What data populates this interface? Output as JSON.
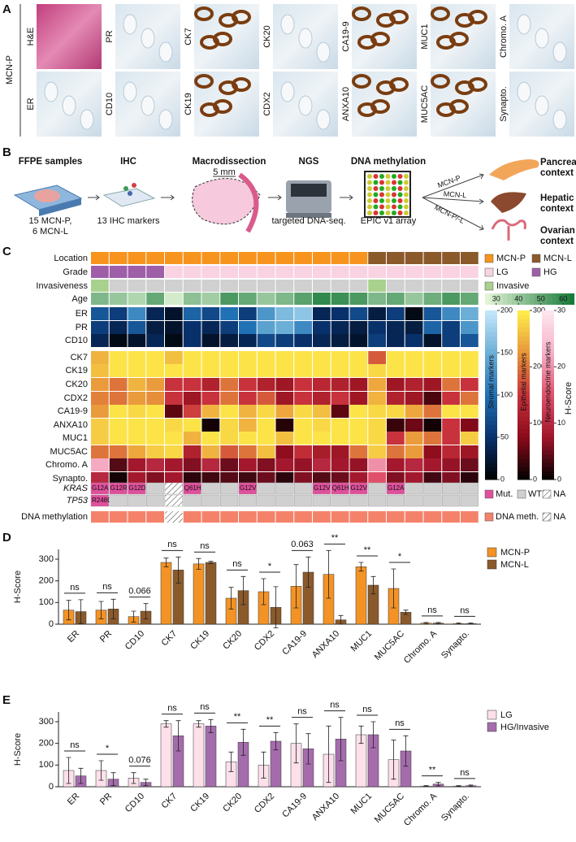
{
  "panel_a": {
    "label": "A",
    "group": "MCN-P",
    "row1": [
      "H&E",
      "PR",
      "CK7",
      "CK20",
      "CA19-9",
      "MUC1",
      "Chromo. A"
    ],
    "row2": [
      "ER",
      "CD10",
      "CK19",
      "CDX2",
      "ANXA10",
      "MUC5AC",
      "Synapto."
    ]
  },
  "panel_b": {
    "label": "B",
    "steps": [
      {
        "title": "FFPE samples",
        "text": [
          "15 MCN-P,",
          "6 MCN-L"
        ]
      },
      {
        "title": "IHC",
        "text": [
          "13 IHC markers"
        ]
      },
      {
        "title": "Macrodissection",
        "text": [
          "5 mm"
        ]
      },
      {
        "title": "NGS",
        "text": [
          "targeted DNA-seq."
        ]
      },
      {
        "title": "DNA methylation",
        "text": [
          "EPIC v1 array"
        ]
      }
    ],
    "arrows": [
      "MCN-P",
      "MCN-L",
      "MCN-P/-L"
    ],
    "contexts": [
      [
        "Pancreatic",
        "context"
      ],
      [
        "Hepatic",
        "context"
      ],
      [
        "Ovarian",
        "context"
      ]
    ]
  },
  "panel_c": {
    "label": "C",
    "legend": [
      {
        "label": "MCN-P",
        "color": "#f7941d"
      },
      {
        "label": "MCN-L",
        "color": "#8b5a2b"
      },
      {
        "label": "LG",
        "color": "#f9d3e2"
      },
      {
        "label": "HG",
        "color": "#9e5fa8"
      },
      {
        "label": "Invasive",
        "color": "#a9d18e"
      }
    ],
    "none_color": "#d0d0d0",
    "annotations": [
      {
        "name": "Location",
        "values": [
          "MCN-P",
          "MCN-P",
          "MCN-P",
          "MCN-P",
          "MCN-P",
          "MCN-P",
          "MCN-P",
          "MCN-P",
          "MCN-P",
          "MCN-P",
          "MCN-P",
          "MCN-P",
          "MCN-P",
          "MCN-P",
          "MCN-P",
          "MCN-L",
          "MCN-L",
          "MCN-L",
          "MCN-L",
          "MCN-L",
          "MCN-L"
        ]
      },
      {
        "name": "Grade",
        "values": [
          "HG",
          "HG",
          "HG",
          "HG",
          "LG",
          "LG",
          "LG",
          "LG",
          "LG",
          "LG",
          "LG",
          "LG",
          "LG",
          "LG",
          "LG",
          "LG",
          "LG",
          "LG",
          "LG",
          "LG",
          "LG"
        ]
      },
      {
        "name": "Invasiveness",
        "values": [
          "Invasive",
          null,
          null,
          null,
          null,
          null,
          null,
          null,
          null,
          null,
          null,
          null,
          null,
          null,
          null,
          "Invasive",
          null,
          null,
          null,
          null,
          null
        ]
      }
    ],
    "age": {
      "name": "Age",
      "values": [
        45,
        40,
        35,
        50,
        28,
        42,
        38,
        55,
        50,
        40,
        45,
        52,
        60,
        58,
        55,
        45,
        50,
        40,
        48,
        55,
        50
      ],
      "lim": [
        25,
        65
      ],
      "ticks": [
        30,
        40,
        50,
        60
      ],
      "colors": [
        "#e3f4d7",
        "#187a3a"
      ]
    },
    "scale_title": "H-Score",
    "scales": [
      {
        "name": "Stromal markers",
        "lim": [
          0,
          200
        ],
        "ticks": [
          0,
          50,
          100,
          150,
          200
        ],
        "colors": [
          "#000000",
          "#08306b",
          "#2171b5",
          "#6baed6",
          "#c6e8fa"
        ],
        "rows": [
          {
            "name": "ER",
            "values": [
              80,
              60,
              120,
              40,
              20,
              90,
              70,
              100,
              60,
              130,
              160,
              170,
              40,
              50,
              70,
              30,
              60,
              10,
              80,
              120,
              150
            ]
          },
          {
            "name": "PR",
            "values": [
              60,
              40,
              80,
              30,
              20,
              50,
              40,
              60,
              100,
              140,
              150,
              120,
              50,
              40,
              30,
              50,
              40,
              30,
              90,
              60,
              130
            ]
          },
          {
            "name": "CD10",
            "values": [
              40,
              10,
              20,
              40,
              10,
              50,
              20,
              30,
              40,
              70,
              60,
              50,
              40,
              30,
              20,
              60,
              40,
              50,
              20,
              60,
              80
            ]
          }
        ]
      },
      {
        "name": "Epithelial markers",
        "lim": [
          0,
          300
        ],
        "ticks": [
          0,
          100,
          200,
          300
        ],
        "colors": [
          "#000000",
          "#8b0a1a",
          "#c8323c",
          "#e8953a",
          "#fff04a"
        ],
        "rows": [
          {
            "name": "CK7",
            "values": [
              250,
              290,
              290,
              290,
              260,
              290,
              290,
              290,
              290,
              290,
              290,
              290,
              290,
              290,
              290,
              180,
              290,
              290,
              290,
              290,
              290
            ]
          },
          {
            "name": "CK19",
            "values": [
              260,
              290,
              290,
              290,
              290,
              290,
              290,
              290,
              290,
              290,
              290,
              290,
              290,
              290,
              290,
              280,
              290,
              290,
              290,
              290,
              290
            ]
          },
          {
            "name": "CK20",
            "values": [
              230,
              200,
              250,
              230,
              150,
              150,
              120,
              200,
              150,
              120,
              100,
              150,
              130,
              120,
              100,
              240,
              100,
              120,
              100,
              200,
              150
            ]
          },
          {
            "name": "CDX2",
            "values": [
              210,
              200,
              230,
              220,
              150,
              100,
              150,
              200,
              150,
              180,
              100,
              150,
              120,
              150,
              100,
              250,
              120,
              100,
              40,
              150,
              200
            ]
          },
          {
            "name": "CA19-9",
            "values": [
              230,
              290,
              280,
              290,
              50,
              160,
              250,
              290,
              250,
              280,
              240,
              280,
              260,
              50,
              290,
              280,
              280,
              240,
              200,
              290,
              290
            ]
          },
          {
            "name": "ANXA10",
            "values": [
              270,
              290,
              290,
              290,
              280,
              290,
              10,
              280,
              250,
              290,
              20,
              290,
              280,
              290,
              290,
              280,
              30,
              60,
              10,
              150,
              70
            ]
          },
          {
            "name": "MUC1",
            "values": [
              270,
              290,
              290,
              290,
              290,
              250,
              290,
              280,
              290,
              290,
              260,
              290,
              290,
              290,
              290,
              280,
              150,
              230,
              200,
              150,
              270
            ]
          },
          {
            "name": "MUC5AC",
            "values": [
              200,
              200,
              240,
              270,
              280,
              120,
              250,
              180,
              200,
              260,
              80,
              140,
              110,
              100,
              200,
              270,
              200,
              230,
              80,
              130,
              100
            ]
          }
        ]
      },
      {
        "name": "Neuroendocrine markers",
        "lim": [
          0,
          30
        ],
        "ticks": [
          0,
          10,
          20,
          30
        ],
        "colors": [
          "#000000",
          "#a0142a",
          "#e0506a",
          "#f6b0c8",
          "#fde8ef"
        ],
        "rows": [
          {
            "name": "Chromo. A",
            "values": [
              22,
              4,
              8,
              10,
              8,
              6,
              10,
              5,
              8,
              6,
              8,
              7,
              10,
              8,
              7,
              20,
              8,
              10,
              8,
              7,
              5
            ]
          },
          {
            "name": "Synapto.",
            "values": [
              10,
              1,
              8,
              6,
              8,
              2,
              3,
              4,
              3,
              5,
              2,
              6,
              4,
              5,
              8,
              15,
              6,
              8,
              3,
              6,
              2
            ]
          }
        ]
      }
    ],
    "mutations": {
      "colors": {
        "Mut.": "#e0509c",
        "WT": "#d0d0d0"
      },
      "legend": [
        "Mut.",
        "WT",
        "NA"
      ],
      "rows": [
        {
          "name": "KRAS",
          "values": [
            "G12A",
            "G12R",
            "G12D",
            "WT",
            "NA",
            "Q61H",
            "WT",
            "WT",
            "G12V",
            "WT",
            "WT",
            "WT",
            "G12V",
            "Q61H",
            "G12V",
            "WT",
            "G12A",
            "WT",
            "WT",
            "WT",
            "WT"
          ]
        },
        {
          "name": "TP53",
          "values": [
            "R248Q",
            "WT",
            "WT",
            "WT",
            "NA",
            "WT",
            "WT",
            "WT",
            "WT",
            "WT",
            "WT",
            "WT",
            "WT",
            "WT",
            "WT",
            "WT",
            "WT",
            "WT",
            "WT",
            "WT",
            "WT"
          ]
        }
      ]
    },
    "methylation": {
      "name": "DNA methylation",
      "color": "#f4826b",
      "legend": [
        "DNA meth.",
        "NA"
      ],
      "values": [
        "DNA meth.",
        "DNA meth.",
        "DNA meth.",
        "DNA meth.",
        "NA",
        "DNA meth.",
        "DNA meth.",
        "DNA meth.",
        "DNA meth.",
        "DNA meth.",
        "DNA meth.",
        "DNA meth.",
        "DNA meth.",
        "DNA meth.",
        "DNA meth.",
        "DNA meth.",
        "DNA meth.",
        "DNA meth.",
        "DNA meth.",
        "DNA meth.",
        "DNA meth."
      ]
    }
  },
  "chart_data": [
    {
      "type": "bar",
      "panel_label": "D",
      "y_label": "H-Score",
      "categories": [
        "ER",
        "PR",
        "CD10",
        "CK7",
        "CK19",
        "CK20",
        "CDX2",
        "CA19-9",
        "ANXA10",
        "MUC1",
        "MUC5AC",
        "Chromo. A",
        "Synapto."
      ],
      "series": [
        {
          "name": "MCN-P",
          "color": "#f39325",
          "values": [
            65,
            65,
            35,
            285,
            278,
            120,
            150,
            175,
            230,
            265,
            165,
            5,
            3
          ],
          "errors": [
            45,
            40,
            25,
            20,
            25,
            50,
            60,
            100,
            110,
            20,
            90,
            3,
            3
          ]
        },
        {
          "name": "MCN-L",
          "color": "#8b5a2b",
          "values": [
            58,
            70,
            60,
            250,
            285,
            155,
            78,
            240,
            20,
            180,
            55,
            5,
            3
          ],
          "errors": [
            55,
            45,
            35,
            60,
            5,
            65,
            95,
            70,
            20,
            40,
            10,
            3,
            3
          ]
        }
      ],
      "significance": [
        "ns",
        "ns",
        "0.066",
        "ns",
        "ns",
        "ns",
        "*",
        "0.063",
        "**",
        "**",
        "*",
        "ns",
        "ns"
      ],
      "ylim": [
        0,
        345
      ],
      "yticks": [
        0,
        100,
        200,
        300
      ]
    },
    {
      "type": "bar",
      "panel_label": "E",
      "y_label": "H-Score",
      "categories": [
        "ER",
        "PR",
        "CD10",
        "CK7",
        "CK19",
        "CK20",
        "CDX2",
        "CA19-9",
        "ANXA10",
        "MUC1",
        "MUC5AC",
        "Chromo. A",
        "Synapto."
      ],
      "series": [
        {
          "name": "LG",
          "color": "#fde0ea",
          "values": [
            75,
            75,
            40,
            290,
            290,
            115,
            100,
            200,
            150,
            240,
            125,
            3,
            3
          ],
          "errors": [
            60,
            45,
            25,
            15,
            15,
            45,
            60,
            90,
            130,
            40,
            90,
            2,
            2
          ]
        },
        {
          "name": "HG/Invasive",
          "color": "#a56cac",
          "values": [
            50,
            35,
            20,
            235,
            280,
            205,
            210,
            175,
            220,
            240,
            165,
            12,
            5
          ],
          "errors": [
            35,
            30,
            15,
            70,
            30,
            60,
            40,
            70,
            100,
            60,
            70,
            8,
            3
          ]
        }
      ],
      "significance": [
        "ns",
        "*",
        "0.076",
        "ns",
        "ns",
        "**",
        "**",
        "ns",
        "ns",
        "ns",
        "ns",
        "**",
        "ns"
      ],
      "ylim": [
        0,
        345
      ],
      "yticks": [
        0,
        100,
        200,
        300
      ]
    }
  ]
}
